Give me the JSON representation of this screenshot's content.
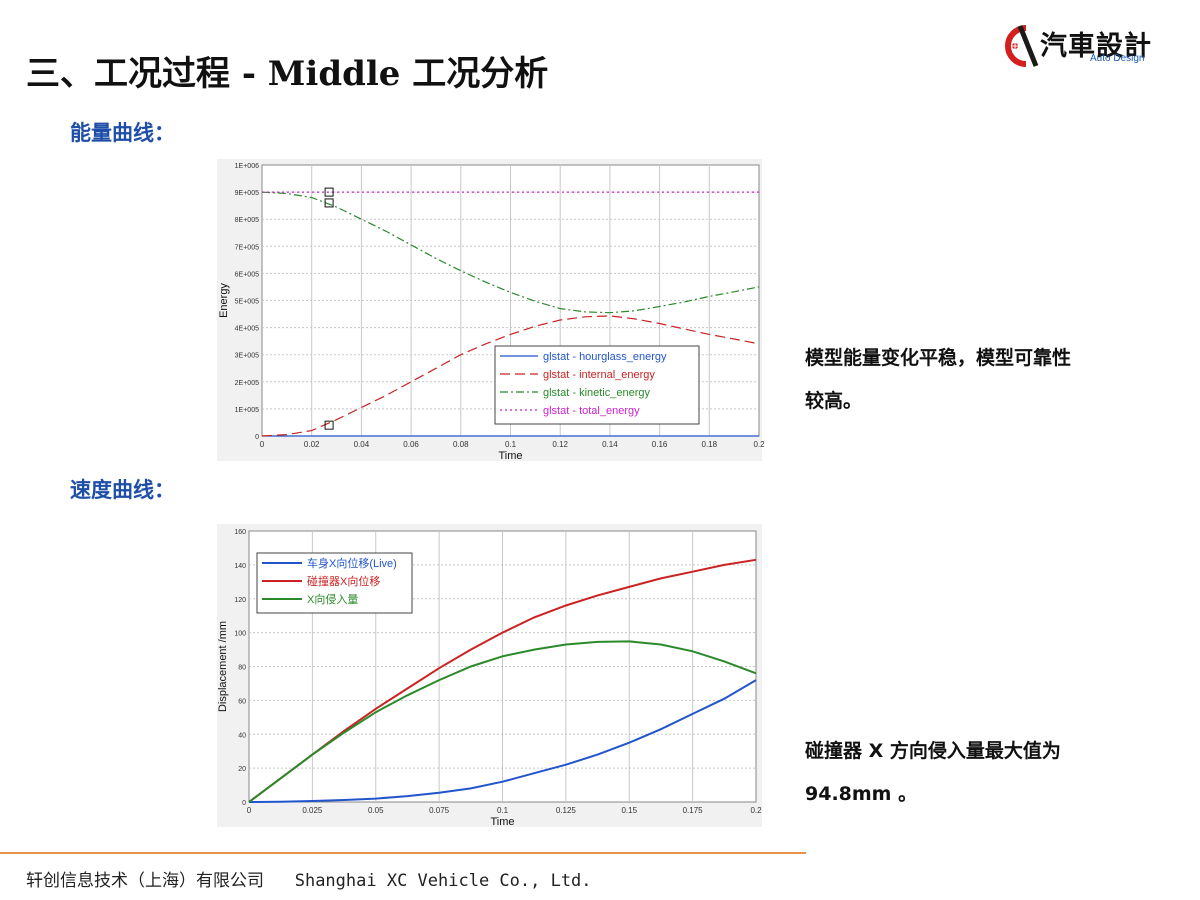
{
  "header": {
    "title": "三、工况过程 - Middle 工况分析",
    "logo_text": "汽車設計",
    "logo_sub": "Auto Design"
  },
  "sections": {
    "energy_label": "能量曲线：",
    "velocity_label": "速度曲线："
  },
  "notes": {
    "energy_line1": "模型能量变化平稳，模型可靠性",
    "energy_line2": "较高。",
    "intrusion_line1": "碰撞器 X 方向侵入量最大值为",
    "intrusion_line2": "94.8mm 。"
  },
  "footer": {
    "company": "轩创信息技术（上海）有限公司",
    "company_en": "Shanghai XC Vehicle Co., Ltd."
  },
  "chart_data": [
    {
      "type": "line",
      "xlabel": "Time",
      "ylabel": "Energy",
      "xlim": [
        0,
        0.2
      ],
      "ylim": [
        0,
        1000000
      ],
      "xticks": [
        "0",
        "0.02",
        "0.04",
        "0.06",
        "0.08",
        "0.1",
        "0.12",
        "0.14",
        "0.16",
        "0.18",
        "0.2"
      ],
      "yticks": [
        "0",
        "1E+005",
        "2E+005",
        "3E+005",
        "4E+005",
        "5E+005",
        "6E+005",
        "7E+005",
        "8E+005",
        "9E+005",
        "1E+006"
      ],
      "grid": true,
      "legend_position": "bottom-right",
      "x": [
        0,
        0.01,
        0.02,
        0.03,
        0.04,
        0.05,
        0.06,
        0.07,
        0.08,
        0.09,
        0.1,
        0.11,
        0.12,
        0.13,
        0.14,
        0.15,
        0.16,
        0.17,
        0.18,
        0.19,
        0.2
      ],
      "series": [
        {
          "name": "glstat - hourglass_energy",
          "color": "#2255cc",
          "dash": "solid",
          "values": [
            0,
            0,
            0,
            0,
            0,
            0,
            0,
            0,
            0,
            0,
            0,
            0,
            0,
            0,
            0,
            0,
            0,
            0,
            0,
            0,
            0
          ]
        },
        {
          "name": "glstat - internal_energy",
          "color": "#cc2222",
          "dash": "long-dash",
          "values": [
            0,
            5000,
            20000,
            60000,
            105000,
            150000,
            200000,
            250000,
            300000,
            340000,
            375000,
            405000,
            428000,
            440000,
            443000,
            432000,
            415000,
            395000,
            375000,
            358000,
            340000
          ]
        },
        {
          "name": "glstat - kinetic_energy",
          "color": "#2a8a2a",
          "dash": "dash-dot",
          "values": [
            900000,
            895000,
            880000,
            845000,
            800000,
            755000,
            705000,
            655000,
            610000,
            568000,
            530000,
            497000,
            470000,
            458000,
            455000,
            462000,
            478000,
            495000,
            515000,
            532000,
            550000
          ]
        },
        {
          "name": "glstat - total_energy",
          "color": "#cc22cc",
          "dash": "dotted",
          "values": [
            900000,
            900000,
            900000,
            900000,
            900000,
            900000,
            900000,
            900000,
            900000,
            900000,
            900000,
            900000,
            900000,
            900000,
            900000,
            900000,
            900000,
            900000,
            900000,
            900000,
            900000
          ]
        }
      ]
    },
    {
      "type": "line",
      "xlabel": "Time",
      "ylabel": "Displacement /mm",
      "xlim": [
        0,
        0.2
      ],
      "ylim": [
        0,
        160
      ],
      "xticks": [
        "0",
        "0.025",
        "0.05",
        "0.075",
        "0.1",
        "0.125",
        "0.15",
        "0.175",
        "0.2"
      ],
      "yticks": [
        "0",
        "20",
        "40",
        "60",
        "80",
        "100",
        "120",
        "140",
        "160"
      ],
      "grid": true,
      "legend_position": "top-left",
      "x": [
        0,
        0.0125,
        0.025,
        0.0375,
        0.05,
        0.0625,
        0.075,
        0.0875,
        0.1,
        0.1125,
        0.125,
        0.1375,
        0.15,
        0.1625,
        0.175,
        0.1875,
        0.2
      ],
      "series": [
        {
          "name": "车身X向位移(Live)",
          "color": "#2255cc",
          "values": [
            0,
            0.2,
            0.6,
            1.2,
            2,
            3.5,
            5.5,
            8,
            12,
            17,
            22,
            28,
            35,
            43,
            52,
            61,
            72
          ]
        },
        {
          "name": "碰撞器X向位移",
          "color": "#cc2222",
          "values": [
            0,
            14,
            28,
            42,
            55,
            67,
            79,
            90,
            100,
            109,
            116,
            122,
            127,
            132,
            136,
            140,
            143
          ]
        },
        {
          "name": "X向侵入量",
          "color": "#2a8a2a",
          "values": [
            0,
            14,
            28,
            41,
            53,
            63,
            72,
            80,
            86,
            90,
            93,
            94.5,
            94.8,
            93,
            89,
            83,
            76
          ]
        }
      ]
    }
  ]
}
